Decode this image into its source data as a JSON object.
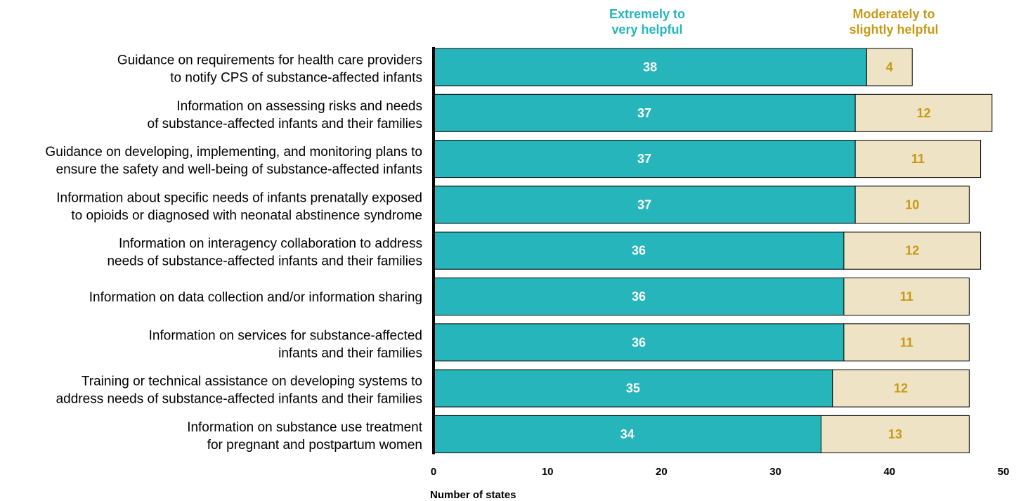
{
  "chart_data": {
    "type": "bar",
    "orientation": "horizontal",
    "stacked": true,
    "categories": [
      [
        "Guidance on requirements for health care providers",
        "to notify CPS of substance-affected infants"
      ],
      [
        "Information on assessing risks and needs",
        "of substance-affected infants and their families"
      ],
      [
        "Guidance on developing, implementing, and monitoring plans to",
        "ensure the safety and well-being of substance-affected infants"
      ],
      [
        "Information about specific needs of infants prenatally exposed",
        "to opioids or diagnosed with neonatal abstinence syndrome"
      ],
      [
        "Information on interagency collaboration to address",
        "needs of substance-affected infants and their families"
      ],
      [
        "Information on data collection and/or information sharing"
      ],
      [
        "Information on services for substance-affected",
        "infants and their families"
      ],
      [
        "Training or technical assistance on developing systems to",
        "address needs of substance-affected infants and their families"
      ],
      [
        "Information on substance use treatment",
        "for pregnant and postpartum women"
      ]
    ],
    "series": [
      {
        "name": [
          "Extremely to",
          "very helpful"
        ],
        "color": "#26b5bb",
        "label_color": "#ffffff",
        "values": [
          38,
          37,
          37,
          37,
          36,
          36,
          36,
          35,
          34
        ]
      },
      {
        "name": [
          "Moderately to",
          "slightly helpful"
        ],
        "color": "#efe3c6",
        "label_color": "#c79a16",
        "values": [
          4,
          12,
          11,
          10,
          12,
          11,
          11,
          12,
          13
        ]
      }
    ],
    "legend_colors": [
      "#26b5bb",
      "#c79a16"
    ],
    "xlabel": "Number of states",
    "xlim": [
      0,
      50
    ],
    "xticks": [
      0,
      10,
      20,
      30,
      40,
      50
    ],
    "grid": false,
    "legend_position": "top"
  }
}
